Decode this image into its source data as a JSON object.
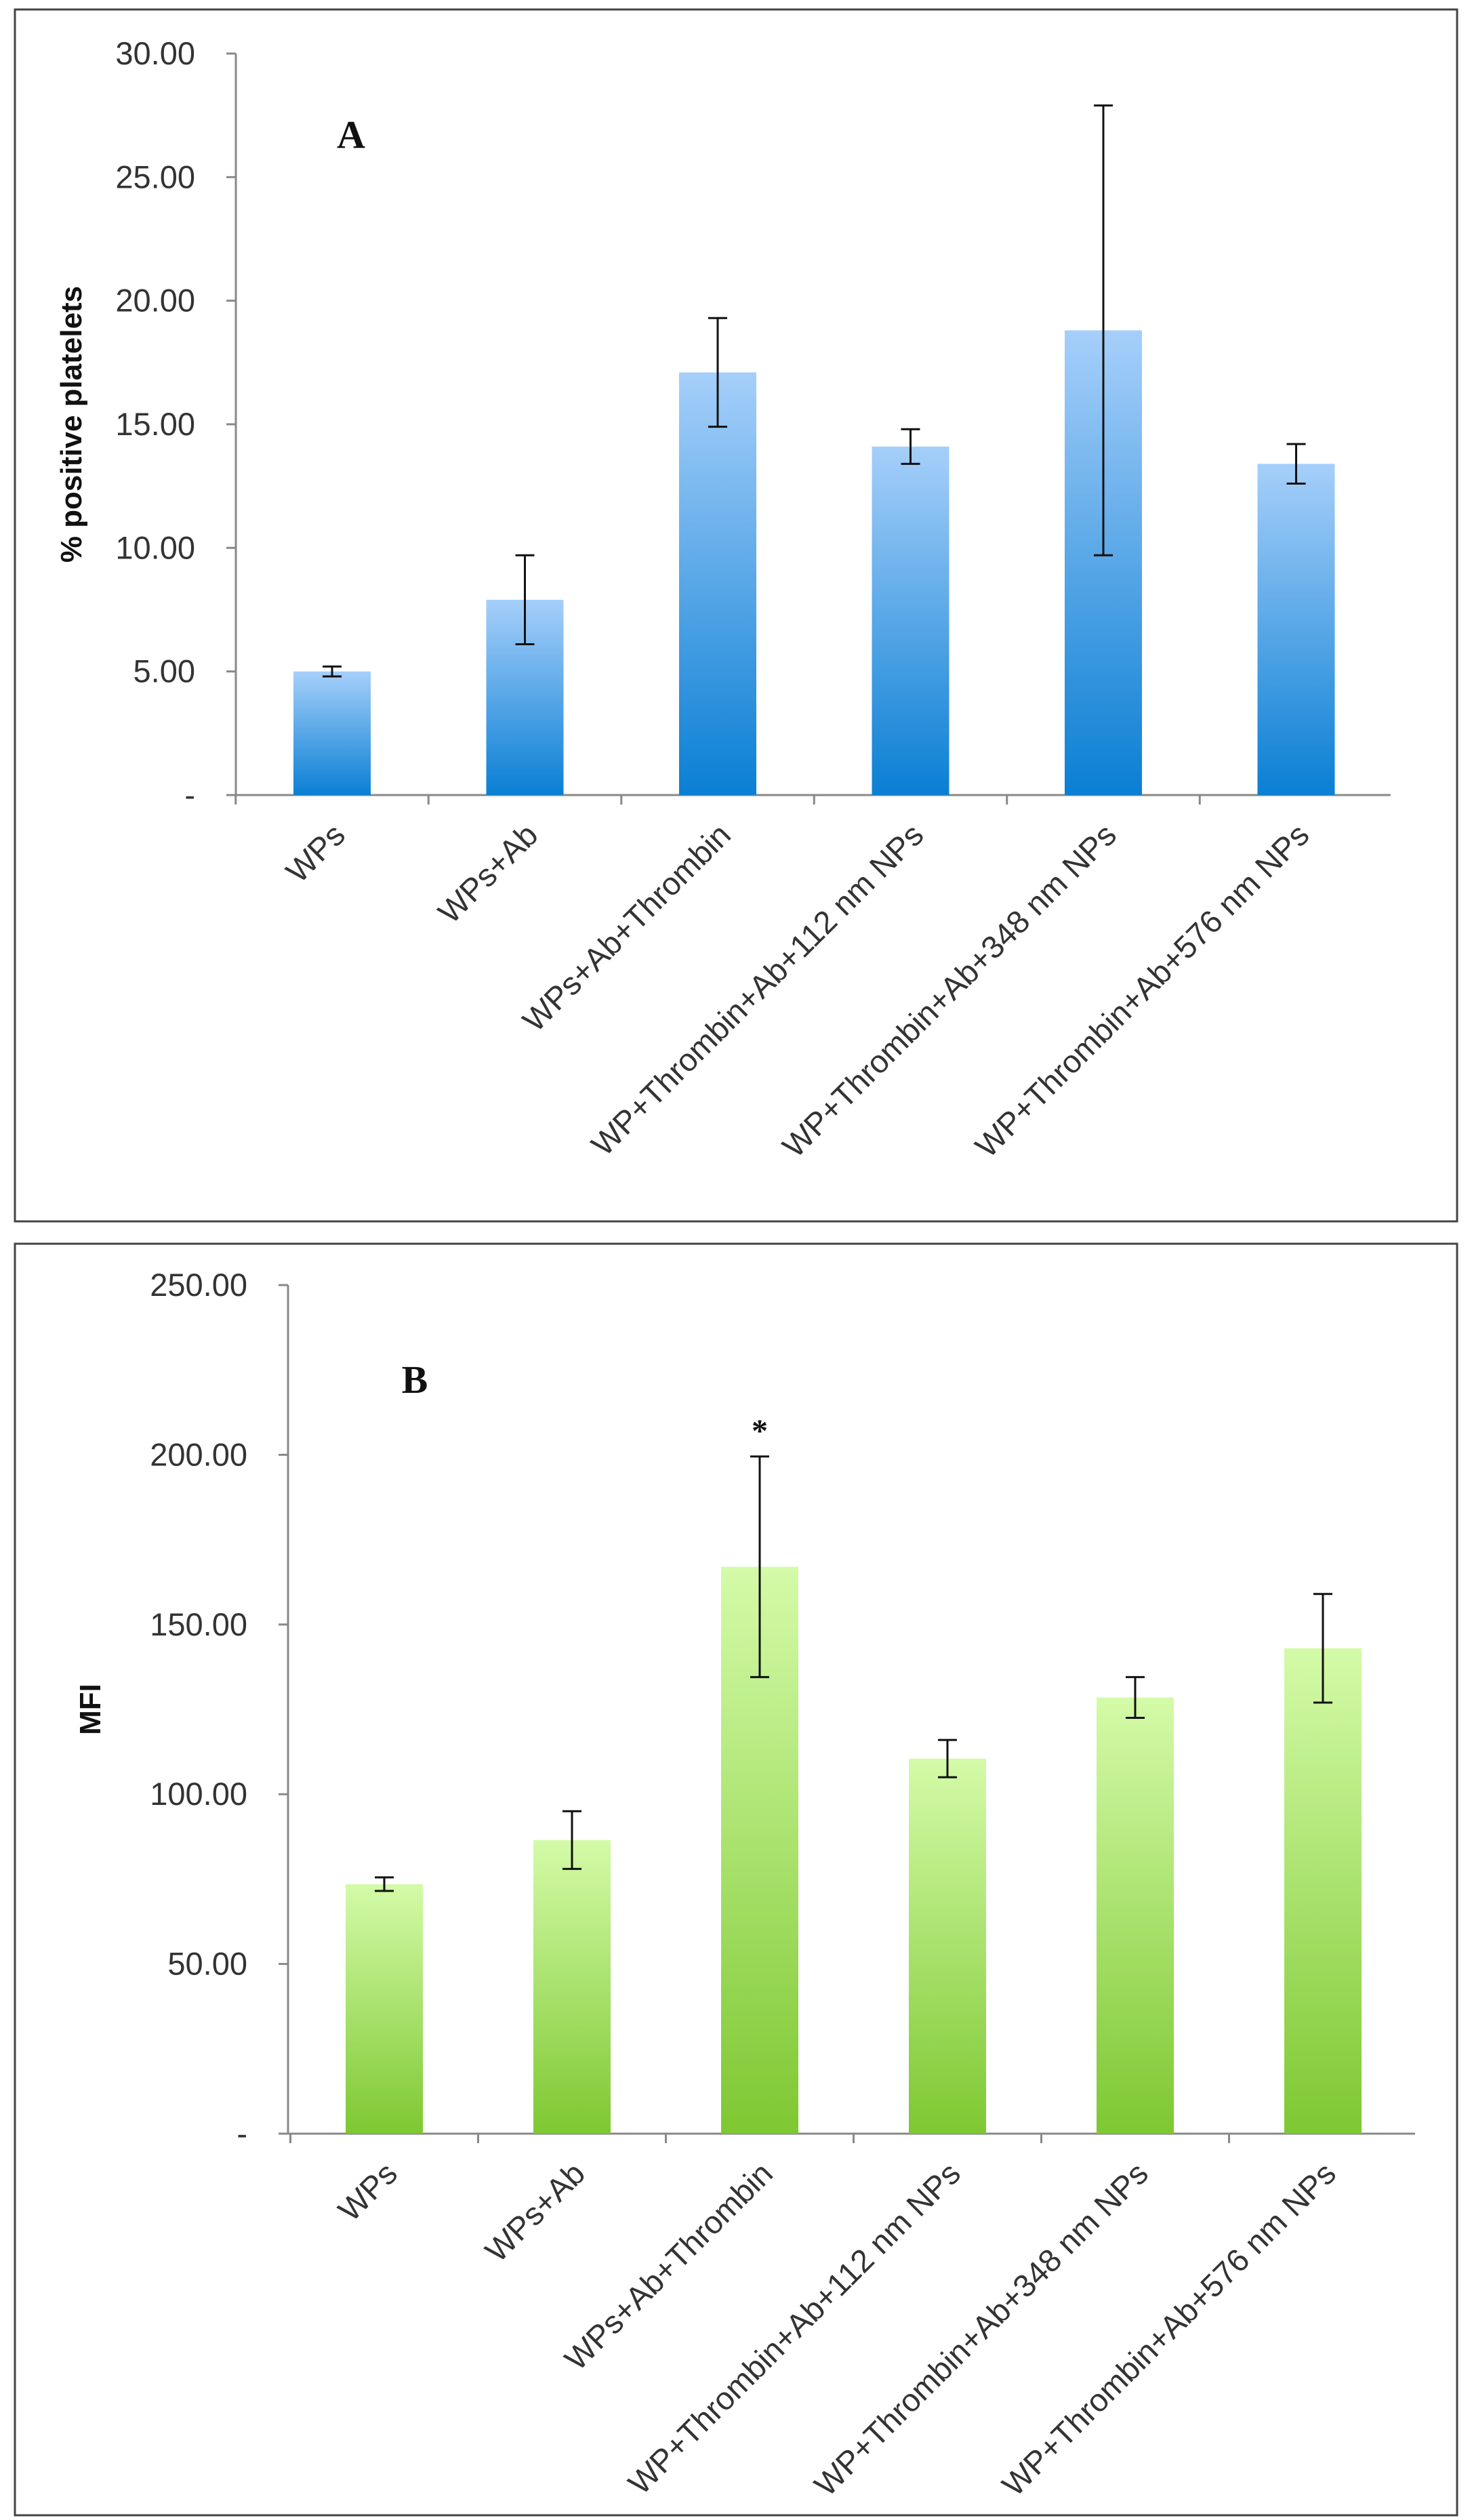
{
  "chart_data": [
    {
      "type": "bar",
      "panel_label": "A",
      "title": "",
      "xlabel": "",
      "ylabel": "% positive platelets",
      "ylim": [
        0,
        30
      ],
      "yticks": [
        0,
        5,
        10,
        15,
        20,
        25,
        30
      ],
      "ytick_labels": [
        "-",
        "5.00",
        "10.00",
        "15.00",
        "20.00",
        "25.00",
        "30.00"
      ],
      "grid": false,
      "categories": [
        "WPs",
        "WPs+Ab",
        "WPs+Ab+Thrombin",
        "WP+Thrombin+Ab+112 nm NPs",
        "WP+Thrombin+Ab+348 nm NPs",
        "WP+Thrombin+Ab+576 nm NPs"
      ],
      "values": [
        5.0,
        7.9,
        17.1,
        14.1,
        18.8,
        13.4
      ],
      "errors": [
        0.2,
        1.8,
        2.2,
        0.7,
        9.1,
        0.8
      ],
      "annotations": [],
      "colors": {
        "bar_top": "#a6cffa",
        "bar_bottom": "#0a7fd4"
      }
    },
    {
      "type": "bar",
      "panel_label": "B",
      "title": "",
      "xlabel": "",
      "ylabel": "MFI",
      "ylim": [
        0,
        250
      ],
      "yticks": [
        0,
        50,
        100,
        150,
        200,
        250
      ],
      "ytick_labels": [
        "-",
        "50.00",
        "100.00",
        "150.00",
        "200.00",
        "250.00"
      ],
      "grid": false,
      "categories": [
        "WPs",
        "WPs+Ab",
        "WPs+Ab+Thrombin",
        "WP+Thrombin+Ab+112 nm NPs",
        "WP+Thrombin+Ab+348 nm NPs",
        "WP+Thrombin+Ab+576 nm NPs"
      ],
      "values": [
        73.5,
        86.5,
        167,
        110.5,
        128.5,
        143
      ],
      "errors": [
        2.0,
        8.5,
        32.5,
        5.5,
        6.0,
        16.0
      ],
      "annotations": [
        {
          "category_index": 2,
          "text": "*"
        }
      ],
      "colors": {
        "bar_top": "#d4fba8",
        "bar_bottom": "#7ec832"
      }
    }
  ]
}
